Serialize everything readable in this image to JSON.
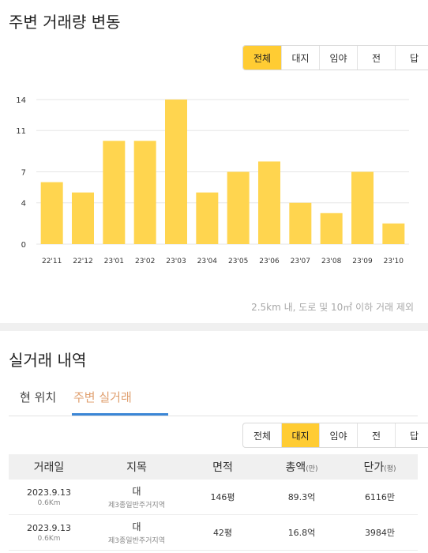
{
  "trend": {
    "title": "주변 거래량 변동",
    "filters": [
      "전체",
      "대지",
      "임야",
      "전",
      "답"
    ],
    "active_filter": 0,
    "footnote": "2.5km 내, 도로 및 10㎡ 이하 거래 제외"
  },
  "chart_data": {
    "type": "bar",
    "title": "",
    "categories": [
      "22'11",
      "22'12",
      "23'01",
      "23'02",
      "23'03",
      "23'04",
      "23'05",
      "23'06",
      "23'07",
      "23'08",
      "23'09",
      "23'10"
    ],
    "values": [
      6,
      5,
      10,
      10,
      14,
      5,
      7,
      8,
      4,
      3,
      7,
      2
    ],
    "yticks": [
      "0",
      "4",
      "7",
      "11",
      "14"
    ],
    "ylim": [
      0,
      14
    ],
    "grid": true,
    "bar_color": "#ffd54f"
  },
  "history": {
    "title": "실거래 내역",
    "tabs": [
      "현 위치",
      "주변 실거래"
    ],
    "active_tab": 1,
    "filters": [
      "전체",
      "대지",
      "임야",
      "전",
      "답"
    ],
    "active_filter": 1,
    "columns": {
      "date": "거래일",
      "land": "지목",
      "area": "면적",
      "total": "총액",
      "total_unit": "(만)",
      "unit_price": "단가",
      "unit_price_unit": "(평)"
    },
    "rows": [
      {
        "date": "2023.9.13",
        "distance": "0.6Km",
        "land": "대",
        "zone": "제3종일반주거지역",
        "area": "146평",
        "total": "89.3억",
        "unit_price": "6116만"
      },
      {
        "date": "2023.9.13",
        "distance": "0.6Km",
        "land": "대",
        "zone": "제3종일반주거지역",
        "area": "42평",
        "total": "16.8억",
        "unit_price": "3984만"
      }
    ]
  }
}
